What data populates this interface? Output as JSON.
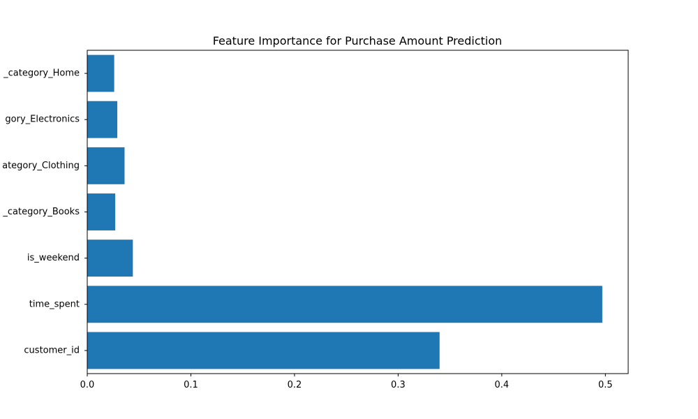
{
  "chart_data": {
    "type": "bar",
    "orientation": "horizontal",
    "title": "Feature Importance for Purchase Amount Prediction",
    "xlabel": "",
    "ylabel": "",
    "categories": [
      "customer_id",
      "time_spent",
      "is_weekend",
      "product_category_Books",
      "product_category_Clothing",
      "product_category_Electronics",
      "product_category_Home"
    ],
    "category_labels_visible": [
      "customer_id",
      "time_spent",
      "is_weekend",
      "_category_Books",
      "ategory_Clothing",
      "gory_Electronics",
      "_category_Home"
    ],
    "values": [
      0.34,
      0.497,
      0.044,
      0.027,
      0.036,
      0.029,
      0.026
    ],
    "xlim": [
      0,
      0.522
    ],
    "xticks": [
      0.0,
      0.1,
      0.2,
      0.3,
      0.4,
      0.5
    ],
    "xtick_labels": [
      "0.0",
      "0.1",
      "0.2",
      "0.3",
      "0.4",
      "0.5"
    ],
    "grid": false,
    "legend": "none",
    "bar_color": "#1f77b4"
  }
}
